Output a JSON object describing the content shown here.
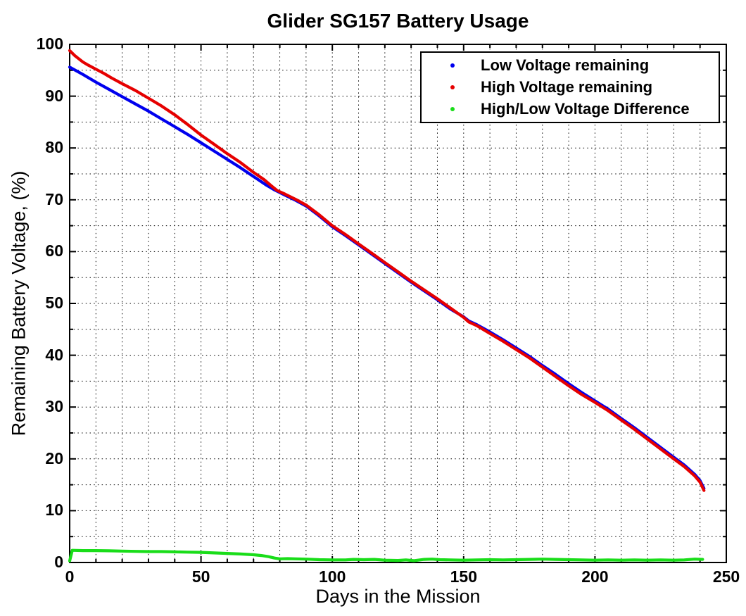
{
  "title": "Glider SG157 Battery Usage",
  "axes": {
    "xlabel": "Days in the Mission",
    "ylabel": "Remaining Battery Voltage, (%)",
    "x_ticks": [
      0,
      50,
      100,
      150,
      200,
      250
    ],
    "y_ticks": [
      0,
      10,
      20,
      30,
      40,
      50,
      60,
      70,
      80,
      90,
      100
    ]
  },
  "legend": {
    "position": "top-right-inside",
    "items": [
      {
        "label": "Low Voltage remaining",
        "color": "#0000ee",
        "marker": "dot"
      },
      {
        "label": "High Voltage remaining",
        "color": "#e60000",
        "marker": "dot"
      },
      {
        "label": "High/Low Voltage Difference",
        "color": "#19dd19",
        "marker": "dot"
      }
    ]
  },
  "chart_data": {
    "type": "line",
    "title": "Glider SG157 Battery Usage",
    "xlabel": "Days in the Mission",
    "ylabel": "Remaining Battery Voltage, (%)",
    "xlim": [
      0,
      250
    ],
    "ylim": [
      0,
      100
    ],
    "x_major": 50,
    "x_minor": 10,
    "y_major": 10,
    "y_minor": 5,
    "grid": "dotted black, major and minor, both axes",
    "series": [
      {
        "id": "low-voltage",
        "name": "Low Voltage remaining",
        "color": "#0000ee",
        "points": [
          [
            0,
            95.6
          ],
          [
            5,
            94.2
          ],
          [
            10,
            92.7
          ],
          [
            15,
            91.3
          ],
          [
            20,
            89.9
          ],
          [
            25,
            88.5
          ],
          [
            30,
            87.1
          ],
          [
            35,
            85.6
          ],
          [
            40,
            84.1
          ],
          [
            45,
            82.6
          ],
          [
            50,
            81.0
          ],
          [
            55,
            79.4
          ],
          [
            60,
            77.8
          ],
          [
            65,
            76.2
          ],
          [
            70,
            74.5
          ],
          [
            75,
            72.8
          ],
          [
            78,
            71.9
          ],
          [
            82,
            70.9
          ],
          [
            86,
            69.9
          ],
          [
            90,
            68.8
          ],
          [
            95,
            66.9
          ],
          [
            100,
            64.8
          ],
          [
            105,
            63.1
          ],
          [
            110,
            61.3
          ],
          [
            115,
            59.5
          ],
          [
            120,
            57.7
          ],
          [
            125,
            55.9
          ],
          [
            130,
            54.1
          ],
          [
            135,
            52.4
          ],
          [
            140,
            50.7
          ],
          [
            145,
            48.9
          ],
          [
            150,
            47.4
          ],
          [
            152,
            46.6
          ],
          [
            155,
            45.9
          ],
          [
            160,
            44.5
          ],
          [
            165,
            43.0
          ],
          [
            170,
            41.4
          ],
          [
            175,
            39.8
          ],
          [
            180,
            38.0
          ],
          [
            185,
            36.3
          ],
          [
            190,
            34.5
          ],
          [
            195,
            32.8
          ],
          [
            200,
            31.2
          ],
          [
            205,
            29.6
          ],
          [
            210,
            27.8
          ],
          [
            215,
            26.0
          ],
          [
            220,
            24.1
          ],
          [
            225,
            22.2
          ],
          [
            230,
            20.3
          ],
          [
            234,
            18.8
          ],
          [
            238,
            17.0
          ],
          [
            240,
            15.8
          ],
          [
            241.5,
            14.3
          ]
        ]
      },
      {
        "id": "high-voltage",
        "name": "High Voltage remaining",
        "color": "#e60000",
        "points": [
          [
            0,
            98.8
          ],
          [
            1,
            98.3
          ],
          [
            2,
            97.8
          ],
          [
            3,
            97.4
          ],
          [
            5,
            96.6
          ],
          [
            7,
            96.0
          ],
          [
            10,
            95.2
          ],
          [
            13,
            94.4
          ],
          [
            16,
            93.5
          ],
          [
            20,
            92.4
          ],
          [
            25,
            91.1
          ],
          [
            30,
            89.6
          ],
          [
            35,
            88.1
          ],
          [
            40,
            86.4
          ],
          [
            45,
            84.5
          ],
          [
            50,
            82.5
          ],
          [
            55,
            80.7
          ],
          [
            60,
            78.9
          ],
          [
            65,
            77.2
          ],
          [
            70,
            75.3
          ],
          [
            74,
            73.9
          ],
          [
            77,
            72.6
          ],
          [
            79,
            71.8
          ],
          [
            82,
            71.1
          ],
          [
            86,
            70.1
          ],
          [
            90,
            69.0
          ],
          [
            95,
            67.1
          ],
          [
            100,
            65.0
          ],
          [
            105,
            63.3
          ],
          [
            110,
            61.5
          ],
          [
            115,
            59.7
          ],
          [
            120,
            57.9
          ],
          [
            125,
            56.1
          ],
          [
            130,
            54.3
          ],
          [
            135,
            52.6
          ],
          [
            140,
            50.9
          ],
          [
            145,
            49.1
          ],
          [
            150,
            47.3
          ],
          [
            152,
            46.4
          ],
          [
            155,
            45.7
          ],
          [
            160,
            44.2
          ],
          [
            165,
            42.7
          ],
          [
            170,
            41.1
          ],
          [
            175,
            39.5
          ],
          [
            180,
            37.7
          ],
          [
            185,
            35.9
          ],
          [
            190,
            34.1
          ],
          [
            195,
            32.4
          ],
          [
            200,
            30.9
          ],
          [
            205,
            29.3
          ],
          [
            210,
            27.5
          ],
          [
            215,
            25.7
          ],
          [
            220,
            23.8
          ],
          [
            225,
            21.9
          ],
          [
            230,
            20.0
          ],
          [
            234,
            18.5
          ],
          [
            238,
            16.7
          ],
          [
            240,
            15.5
          ],
          [
            241.5,
            13.9
          ]
        ]
      },
      {
        "id": "voltage-difference",
        "name": "High/Low Voltage Difference",
        "color": "#19dd19",
        "points": [
          [
            0,
            0.3
          ],
          [
            1,
            2.35
          ],
          [
            5,
            2.3
          ],
          [
            10,
            2.3
          ],
          [
            15,
            2.25
          ],
          [
            20,
            2.2
          ],
          [
            25,
            2.15
          ],
          [
            30,
            2.1
          ],
          [
            35,
            2.1
          ],
          [
            40,
            2.05
          ],
          [
            45,
            2.0
          ],
          [
            50,
            1.95
          ],
          [
            55,
            1.85
          ],
          [
            60,
            1.75
          ],
          [
            65,
            1.65
          ],
          [
            70,
            1.5
          ],
          [
            73,
            1.35
          ],
          [
            76,
            1.1
          ],
          [
            78,
            0.85
          ],
          [
            80,
            0.7
          ],
          [
            83,
            0.75
          ],
          [
            86,
            0.7
          ],
          [
            90,
            0.65
          ],
          [
            95,
            0.55
          ],
          [
            100,
            0.5
          ],
          [
            105,
            0.5
          ],
          [
            108,
            0.6
          ],
          [
            112,
            0.55
          ],
          [
            116,
            0.6
          ],
          [
            120,
            0.45
          ],
          [
            125,
            0.4
          ],
          [
            128,
            0.5
          ],
          [
            131,
            0.35
          ],
          [
            135,
            0.6
          ],
          [
            138,
            0.65
          ],
          [
            141,
            0.55
          ],
          [
            145,
            0.5
          ],
          [
            150,
            0.45
          ],
          [
            155,
            0.5
          ],
          [
            160,
            0.55
          ],
          [
            165,
            0.5
          ],
          [
            170,
            0.55
          ],
          [
            175,
            0.6
          ],
          [
            180,
            0.65
          ],
          [
            185,
            0.6
          ],
          [
            190,
            0.55
          ],
          [
            195,
            0.5
          ],
          [
            200,
            0.45
          ],
          [
            205,
            0.5
          ],
          [
            210,
            0.45
          ],
          [
            215,
            0.5
          ],
          [
            220,
            0.45
          ],
          [
            225,
            0.5
          ],
          [
            230,
            0.45
          ],
          [
            234,
            0.5
          ],
          [
            238,
            0.65
          ],
          [
            241,
            0.6
          ]
        ]
      }
    ]
  }
}
